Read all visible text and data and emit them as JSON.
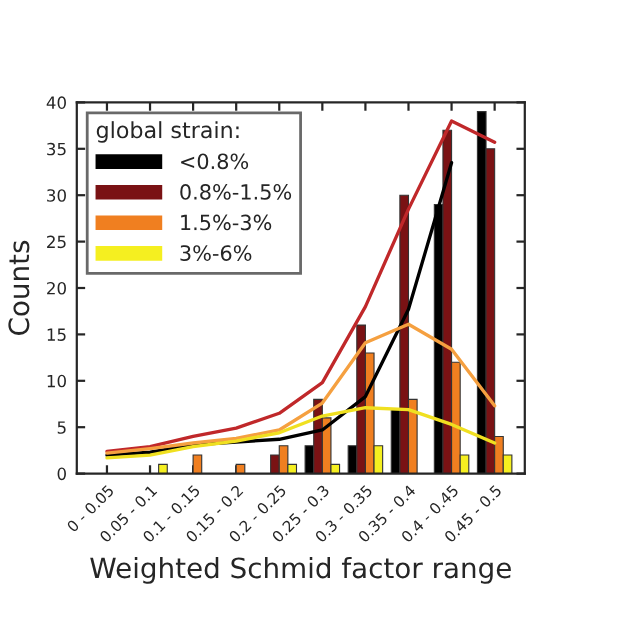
{
  "chart_data": {
    "type": "bar",
    "xlabel": "Weighted Schmid factor range",
    "ylabel": "Counts",
    "legend_title": "global strain:",
    "legend": "top left",
    "grid": false,
    "categories": [
      "0 - 0.05",
      "0.05 - 0.1",
      "0.1 - 0.15",
      "0.15 - 0.2",
      "0.2 - 0.25",
      "0.25 - 0.3",
      "0.3 - 0.35",
      "0.35 - 0.4",
      "0.4 - 0.45",
      "0.45 - 0.5"
    ],
    "ylim": [
      0,
      40
    ],
    "yticks": [
      0,
      5,
      10,
      15,
      20,
      25,
      30,
      35,
      40
    ],
    "series": [
      {
        "name": "<0.8%",
        "color": "#000000",
        "values": [
          0,
          0,
          0,
          0,
          0,
          3,
          3,
          7,
          29,
          39
        ]
      },
      {
        "name": "0.8%-1.5%",
        "color": "#7a1214",
        "values": [
          0,
          0,
          0,
          0,
          2,
          8,
          16,
          30,
          37,
          35
        ]
      },
      {
        "name": "1.5%-3%",
        "color": "#f07f20",
        "values": [
          0,
          0,
          2,
          1,
          3,
          6,
          13,
          8,
          12,
          4
        ]
      },
      {
        "name": "3%-6%",
        "color": "#f5ef20",
        "values": [
          0,
          1,
          0,
          0,
          1,
          1,
          3,
          0,
          2,
          2
        ]
      },
      {
        "type": "line",
        "color": "#000000",
        "values": [
          2.0,
          2.3,
          3.1,
          3.4,
          3.7,
          4.7,
          8.3,
          17.7,
          33.5,
          null
        ]
      },
      {
        "type": "line",
        "color": "#c0282a",
        "values": [
          2.4,
          2.9,
          4.0,
          4.9,
          6.5,
          9.8,
          18,
          28.5,
          38,
          35.7
        ]
      },
      {
        "type": "line",
        "color": "#f5a040",
        "values": [
          2.2,
          2.7,
          3.3,
          3.8,
          4.7,
          7.6,
          14.1,
          16.1,
          13.4,
          7.3
        ]
      },
      {
        "type": "line",
        "color": "#f0e020",
        "values": [
          1.7,
          2.0,
          2.9,
          3.5,
          4.4,
          6.2,
          7.1,
          6.9,
          5.3,
          3.3
        ]
      }
    ]
  }
}
